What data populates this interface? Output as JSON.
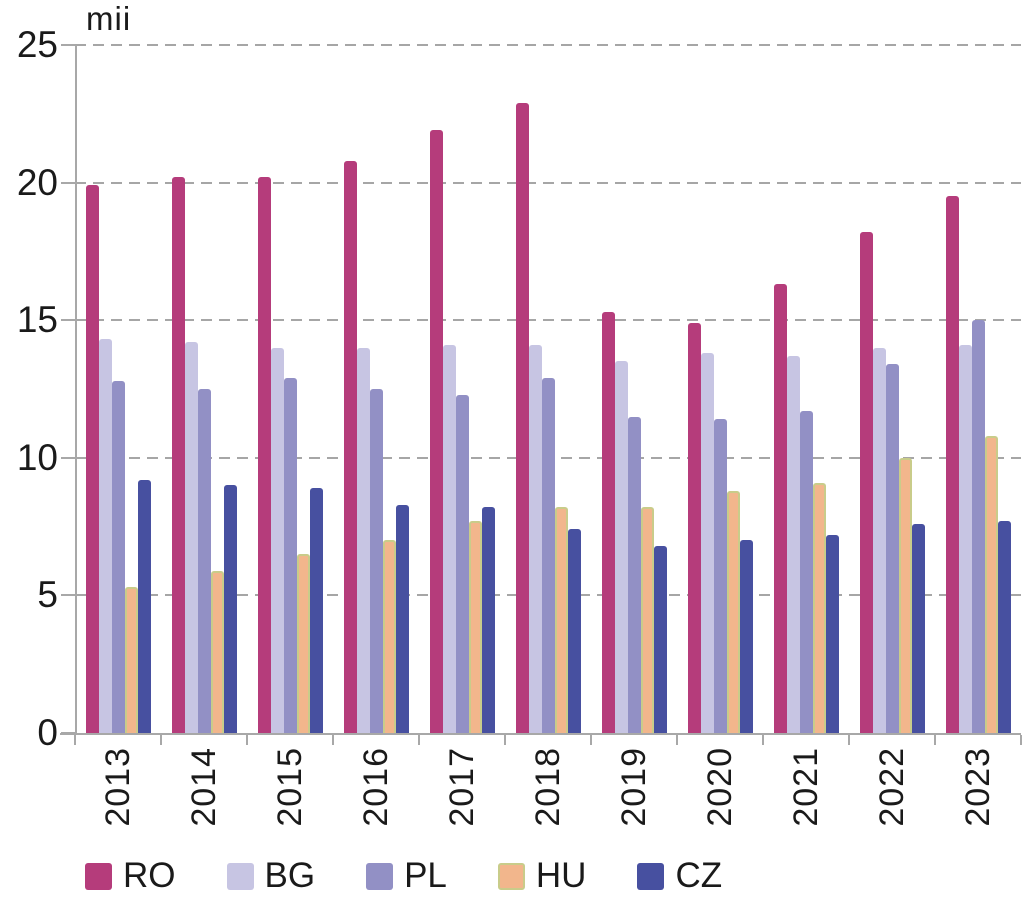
{
  "chart_data": {
    "type": "bar",
    "y_axis_title": "mii",
    "categories": [
      "2013",
      "2014",
      "2015",
      "2016",
      "2017",
      "2018",
      "2019",
      "2020",
      "2021",
      "2022",
      "2023"
    ],
    "series": [
      {
        "name": "RO",
        "color": "#B53C7B",
        "values": [
          19.9,
          20.2,
          20.2,
          20.8,
          21.9,
          22.9,
          15.3,
          14.9,
          16.3,
          18.2,
          19.5
        ]
      },
      {
        "name": "BG",
        "color": "#C7C5E3",
        "values": [
          14.3,
          14.2,
          14.0,
          14.0,
          14.1,
          14.1,
          13.5,
          13.8,
          13.7,
          14.0,
          14.1
        ]
      },
      {
        "name": "PL",
        "color": "#9290C5",
        "values": [
          12.8,
          12.5,
          12.9,
          12.5,
          12.3,
          12.9,
          11.5,
          11.4,
          11.7,
          13.4,
          15.0
        ]
      },
      {
        "name": "HU",
        "color": "#F2B68C",
        "border_color": "#C9CC8A",
        "values": [
          5.3,
          5.9,
          6.5,
          7.0,
          7.7,
          8.2,
          8.2,
          8.8,
          9.1,
          10.0,
          10.8
        ]
      },
      {
        "name": "CZ",
        "color": "#4750A0",
        "values": [
          9.2,
          9.0,
          8.9,
          8.3,
          8.2,
          7.4,
          6.8,
          7.0,
          7.2,
          7.6,
          7.7
        ]
      }
    ],
    "xlabel": "",
    "ylabel": "mii",
    "ylim": [
      0,
      25
    ],
    "yticks": [
      0,
      5,
      10,
      15,
      20,
      25
    ],
    "grid": "horizontal-dashed",
    "legend_position": "bottom",
    "colors": {
      "gridline": "#A6A6A6",
      "axis": "#A8A8A8",
      "text": "#1A1A1A"
    }
  }
}
